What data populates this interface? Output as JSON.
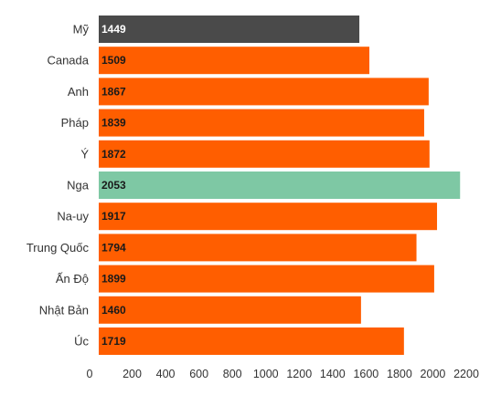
{
  "chart_data": {
    "type": "bar",
    "orientation": "horizontal",
    "categories": [
      "Mỹ",
      "Canada",
      "Anh",
      "Pháp",
      "Ý",
      "Nga",
      "Na-uy",
      "Trung Quốc",
      "Ấn Độ",
      "Nhật Bản",
      "Úc"
    ],
    "values": [
      1449,
      1509,
      1867,
      1839,
      1872,
      2053,
      1917,
      1794,
      1899,
      1460,
      1719
    ],
    "bar_extents": [
      1560,
      1620,
      1975,
      1948,
      1980,
      2163,
      2025,
      1902,
      2008,
      1570,
      1827
    ],
    "data_labels": [
      "1449",
      "1509",
      "1867",
      "1839",
      "1872",
      "2053",
      "1917",
      "1794",
      "1899",
      "1460",
      "1719"
    ],
    "title": "",
    "xlabel": "",
    "ylabel": "",
    "xlim": [
      0,
      2200
    ],
    "x_ticks": [
      0,
      200,
      400,
      600,
      800,
      1000,
      1200,
      1400,
      1600,
      1800,
      2000,
      2200
    ],
    "x_tick_labels": [
      "0",
      "200",
      "400",
      "600",
      "800",
      "1000",
      "1200",
      "1400",
      "1600",
      "1800",
      "2000",
      "2200"
    ],
    "grid": false,
    "legend": "none",
    "colors": {
      "default": "#ff5e00",
      "highlight_first": "#4a4a4a",
      "highlight_max": "#7ec8a4",
      "label_on_dark": "#ffffff",
      "label_on_light": "#1a1a1a"
    },
    "bar_colors": [
      "#4a4a4a",
      "#ff5e00",
      "#ff5e00",
      "#ff5e00",
      "#ff5e00",
      "#7ec8a4",
      "#ff5e00",
      "#ff5e00",
      "#ff5e00",
      "#ff5e00",
      "#ff5e00"
    ]
  }
}
